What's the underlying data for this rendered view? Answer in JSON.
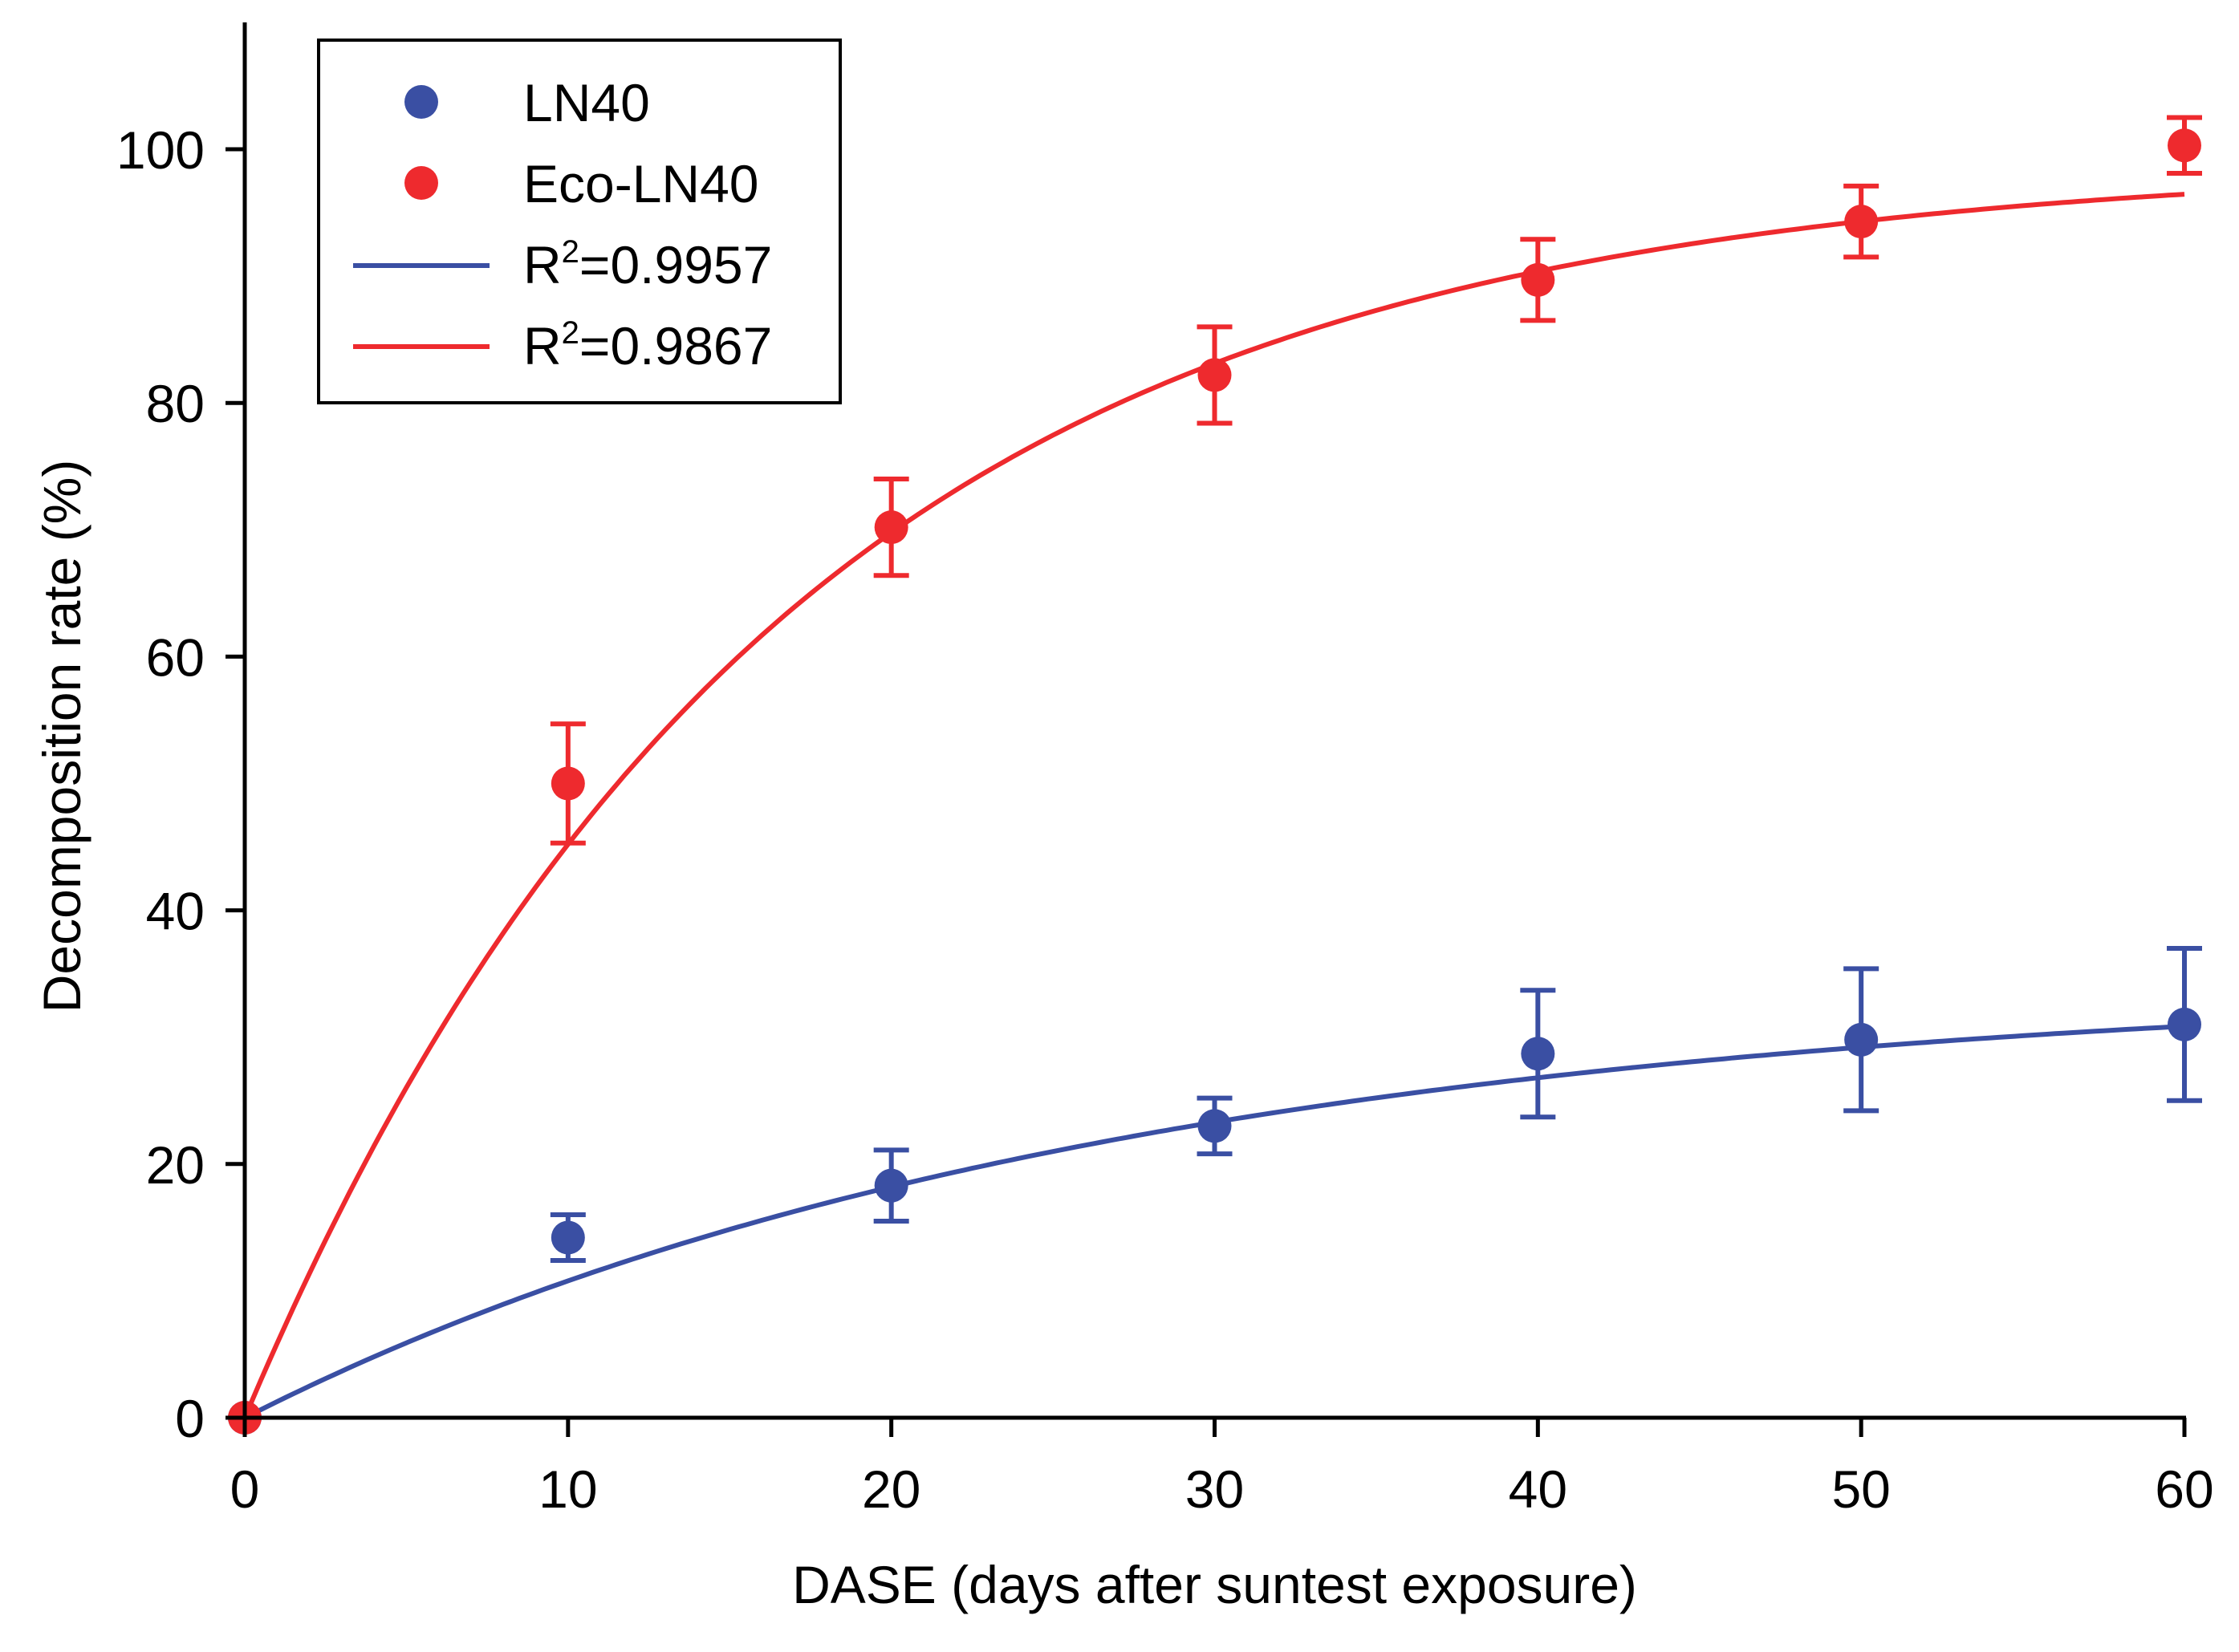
{
  "chart_data": {
    "type": "scatter",
    "xlabel": "DASE (days after suntest exposure)",
    "ylabel": "Decomposition rate (%)",
    "xlim": [
      0,
      60
    ],
    "ylim": [
      0,
      110
    ],
    "xticks": [
      0,
      10,
      20,
      30,
      40,
      50,
      60
    ],
    "yticks": [
      0,
      20,
      40,
      60,
      80,
      100
    ],
    "grid": false,
    "legend_position": "top-left",
    "series": [
      {
        "name": "LN40",
        "kind": "points",
        "color": "#3a4fa3",
        "x": [
          0,
          10,
          20,
          30,
          40,
          50,
          60
        ],
        "y": [
          0,
          14.2,
          18.3,
          23.0,
          28.7,
          29.8,
          31.0
        ],
        "yerr": [
          0,
          1.8,
          2.8,
          2.2,
          5.0,
          5.6,
          6.0
        ]
      },
      {
        "name": "Eco-LN40",
        "kind": "points",
        "color": "#ee2a2e",
        "x": [
          0,
          10,
          20,
          30,
          40,
          50,
          60
        ],
        "y": [
          0,
          50.0,
          70.2,
          82.2,
          89.7,
          94.3,
          100.3
        ],
        "yerr": [
          0,
          4.7,
          3.8,
          3.8,
          3.2,
          2.8,
          2.2
        ]
      },
      {
        "name_main": "R",
        "name_sup": "2",
        "name_rest": "=0.9957",
        "kind": "fit",
        "color": "#3a4fa3",
        "fit": {
          "form": "a*(1-exp(-k*x))",
          "a": 34.5,
          "k": 0.0375
        }
      },
      {
        "name_main": "R",
        "name_sup": "2",
        "name_rest": "=0.9867",
        "kind": "fit",
        "color": "#ee2a2e",
        "fit": {
          "form": "a*(1-exp(-k*x))",
          "a": 99.0,
          "k": 0.061
        }
      }
    ]
  }
}
